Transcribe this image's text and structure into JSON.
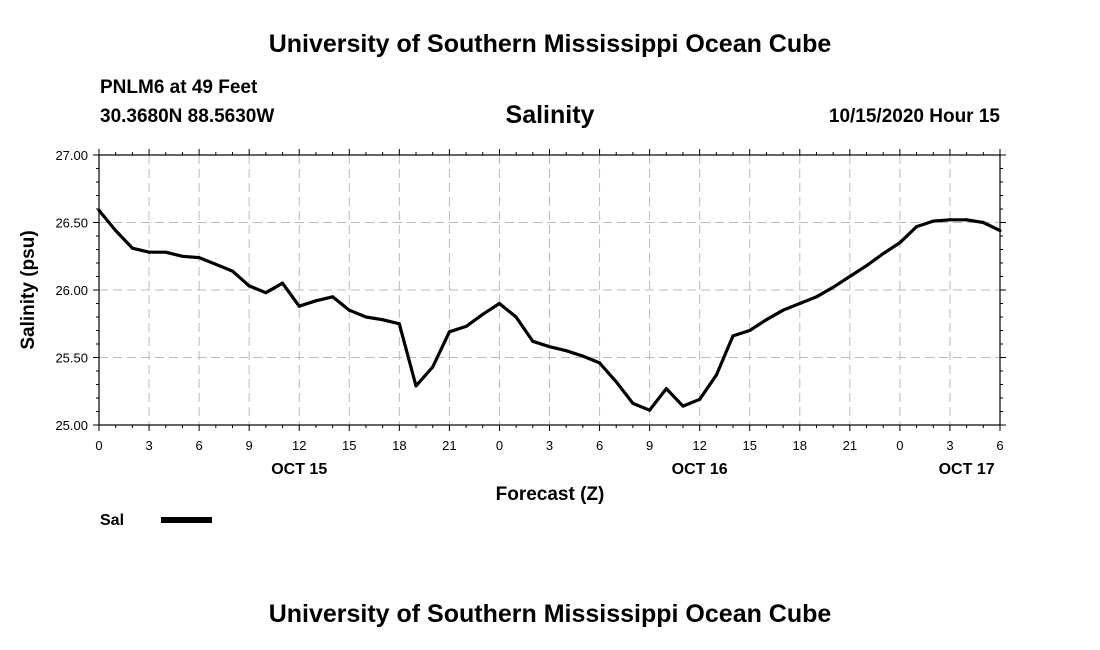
{
  "header": {
    "title_top": "University of Southern Mississippi Ocean Cube",
    "station": "PNLM6 at 49 Feet",
    "coords": "30.3680N 88.5630W",
    "variable": "Salinity",
    "datetime": "10/15/2020 Hour 15"
  },
  "footer": {
    "title_bottom": "University of Southern Mississippi Ocean Cube"
  },
  "legend": {
    "label": "Sal"
  },
  "chart_data": {
    "type": "line",
    "title": "Salinity",
    "xlabel": "Forecast (Z)",
    "ylabel": "Salinity (psu)",
    "xlim": [
      0,
      54
    ],
    "ylim": [
      25.0,
      27.0
    ],
    "grid": true,
    "yticks": [
      "25.00",
      "25.50",
      "26.00",
      "26.50",
      "27.00"
    ],
    "ytick_values": [
      25.0,
      25.5,
      26.0,
      26.5,
      27.0
    ],
    "xticks": [
      "0",
      "3",
      "6",
      "9",
      "12",
      "15",
      "18",
      "21",
      "0",
      "3",
      "6",
      "9",
      "12",
      "15",
      "18",
      "21",
      "0",
      "3",
      "6"
    ],
    "day_labels": [
      {
        "label": "OCT 15",
        "x": 12
      },
      {
        "label": "OCT 16",
        "x": 36
      },
      {
        "label": "OCT 17",
        "x": 52
      }
    ],
    "series": [
      {
        "name": "Sal",
        "x": [
          0,
          1,
          2,
          3,
          4,
          5,
          6,
          7,
          8,
          9,
          10,
          11,
          12,
          13,
          14,
          15,
          16,
          17,
          18,
          19,
          20,
          21,
          22,
          23,
          24,
          25,
          26,
          27,
          28,
          29,
          30,
          31,
          32,
          33,
          34,
          35,
          36,
          37,
          38,
          39,
          40,
          41,
          42,
          43,
          44,
          45,
          46,
          47,
          48,
          49,
          50,
          51,
          52,
          53,
          54
        ],
        "y": [
          26.59,
          26.44,
          26.31,
          26.28,
          26.28,
          26.25,
          26.24,
          26.19,
          26.14,
          26.03,
          25.98,
          26.05,
          25.88,
          25.92,
          25.95,
          25.85,
          25.8,
          25.78,
          25.75,
          25.29,
          25.43,
          25.69,
          25.73,
          25.82,
          25.9,
          25.8,
          25.62,
          25.58,
          25.55,
          25.51,
          25.46,
          25.32,
          25.16,
          25.11,
          25.27,
          25.14,
          25.19,
          25.37,
          25.66,
          25.7,
          25.78,
          25.85,
          25.9,
          25.95,
          26.02,
          26.1,
          26.18,
          26.27,
          26.35,
          26.47,
          26.51,
          26.52,
          26.52,
          26.5,
          26.44
        ]
      }
    ]
  }
}
